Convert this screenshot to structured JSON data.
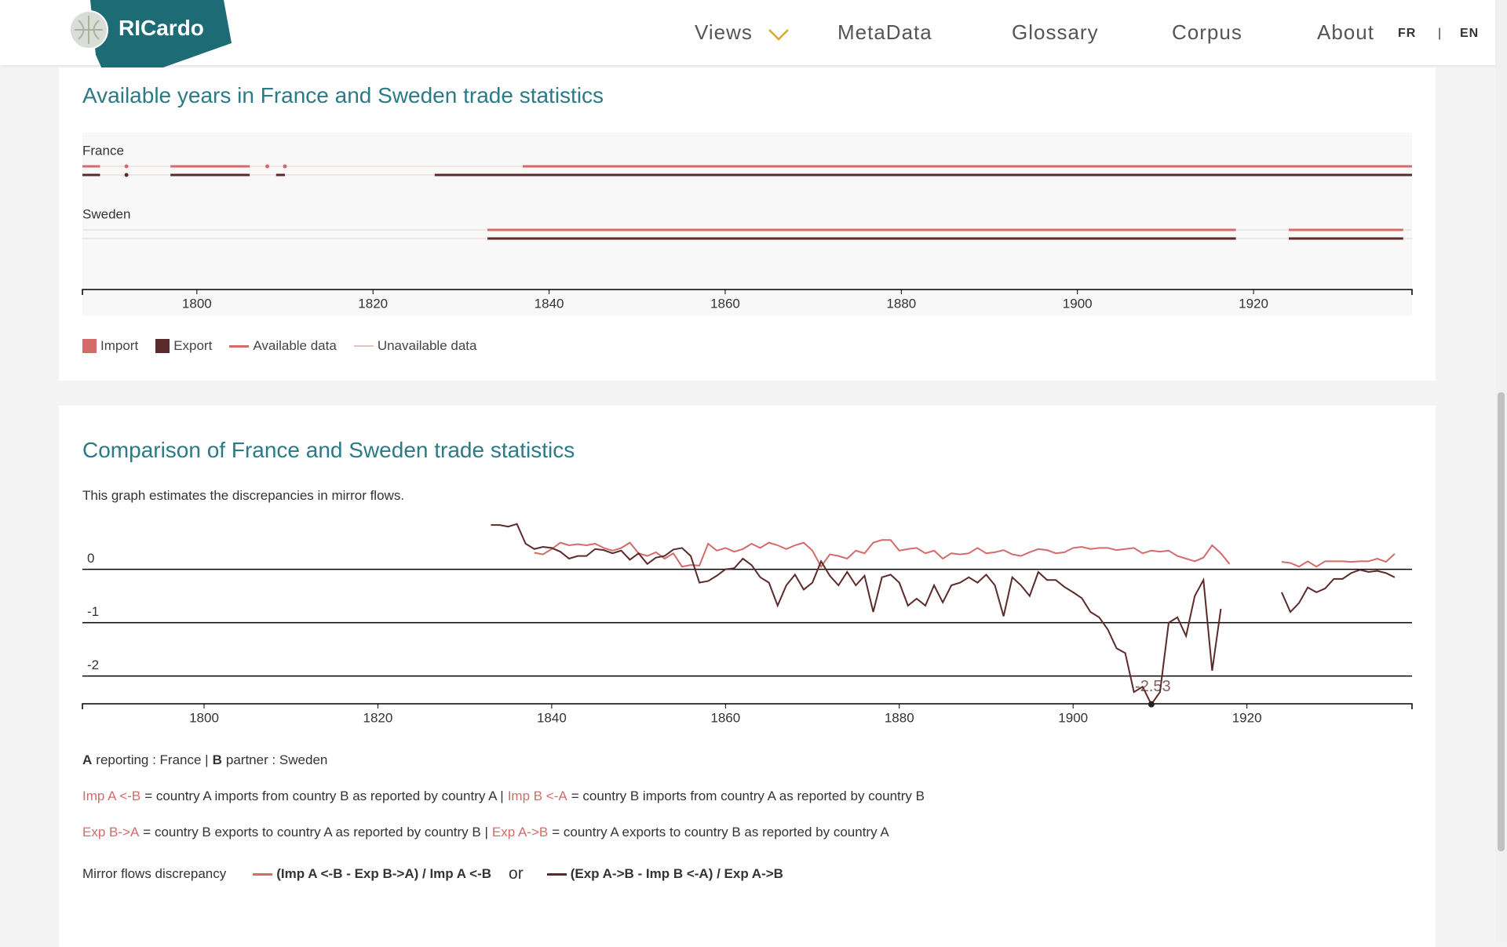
{
  "header": {
    "logo": "RICardo",
    "nav": [
      "Views",
      "MetaData",
      "Glossary",
      "Corpus",
      "About"
    ],
    "languages": [
      "FR",
      "EN"
    ],
    "language_separator": "|"
  },
  "chart_data": [
    {
      "type": "timeline",
      "title": "Available years in France and Sweden trade statistics",
      "xlim": [
        1787,
        1938
      ],
      "xticks": [
        1800,
        1820,
        1840,
        1860,
        1880,
        1900,
        1920
      ],
      "import_color": "#d36b6b",
      "export_color": "#5c2a2a",
      "unavailable_color": "#e6d2d2",
      "rows": [
        {
          "name": "France",
          "import": [
            [
              1787,
              1789
            ],
            [
              1792,
              1792
            ],
            [
              1797,
              1806
            ],
            [
              1808,
              1808
            ],
            [
              1810,
              1810
            ],
            [
              1837,
              1938
            ]
          ],
          "export": [
            [
              1787,
              1789
            ],
            [
              1792,
              1792
            ],
            [
              1797,
              1806
            ],
            [
              1809,
              1810
            ],
            [
              1827,
              1938
            ]
          ]
        },
        {
          "name": "Sweden",
          "import": [
            [
              1833,
              1918
            ],
            [
              1924,
              1937
            ]
          ],
          "export": [
            [
              1833,
              1918
            ],
            [
              1924,
              1937
            ]
          ]
        }
      ],
      "legend": {
        "import": "Import",
        "export": "Export",
        "available": "Available data",
        "unavailable": "Unavailable data"
      }
    },
    {
      "type": "line",
      "title": "Comparison of France and Sweden trade statistics",
      "subtitle": "This graph estimates the discrepancies in mirror flows.",
      "xlim": [
        1786,
        1939
      ],
      "xticks": [
        1800,
        1820,
        1840,
        1860,
        1880,
        1900,
        1920
      ],
      "ylim": [
        -2.52,
        0.95
      ],
      "yticks": [
        0,
        -1,
        -2
      ],
      "grid": true,
      "x": [
        1833,
        1834,
        1835,
        1836,
        1837,
        1838,
        1839,
        1840,
        1841,
        1842,
        1843,
        1844,
        1845,
        1846,
        1847,
        1848,
        1849,
        1850,
        1851,
        1852,
        1853,
        1854,
        1855,
        1856,
        1857,
        1858,
        1859,
        1860,
        1861,
        1862,
        1863,
        1864,
        1865,
        1866,
        1867,
        1868,
        1869,
        1870,
        1871,
        1872,
        1873,
        1874,
        1875,
        1876,
        1877,
        1878,
        1879,
        1880,
        1881,
        1882,
        1883,
        1884,
        1885,
        1886,
        1887,
        1888,
        1889,
        1890,
        1891,
        1892,
        1893,
        1894,
        1895,
        1896,
        1897,
        1898,
        1899,
        1900,
        1901,
        1902,
        1903,
        1904,
        1905,
        1906,
        1907,
        1908,
        1909,
        1910,
        1911,
        1912,
        1913,
        1914,
        1915,
        1916,
        1917,
        1918,
        1919,
        1920,
        1921,
        1922,
        1923,
        1924,
        1925,
        1926,
        1927,
        1928,
        1929,
        1930,
        1931,
        1932,
        1933,
        1934,
        1935,
        1936,
        1937
      ],
      "series": [
        {
          "name": "(Imp A <-B - Exp B->A) / Imp A <-B",
          "color": "#d36b6b",
          "values": [
            null,
            null,
            null,
            null,
            null,
            0.31,
            0.28,
            0.38,
            0.5,
            0.45,
            0.47,
            0.45,
            0.48,
            0.4,
            0.35,
            0.4,
            0.5,
            0.3,
            0.25,
            0.32,
            0.2,
            0.3,
            0.05,
            0.08,
            0.07,
            0.48,
            0.35,
            0.4,
            0.33,
            0.38,
            0.48,
            0.4,
            0.5,
            0.45,
            0.38,
            0.45,
            0.5,
            0.35,
            0.05,
            0.28,
            0.25,
            0.2,
            0.35,
            0.3,
            0.5,
            0.55,
            0.55,
            0.35,
            0.38,
            0.4,
            0.3,
            0.35,
            0.2,
            0.3,
            0.28,
            0.3,
            0.4,
            0.3,
            0.32,
            0.36,
            0.28,
            0.25,
            0.32,
            0.38,
            0.36,
            0.3,
            0.32,
            0.4,
            0.42,
            0.38,
            0.4,
            0.4,
            0.36,
            0.38,
            0.4,
            0.3,
            0.35,
            0.33,
            0.35,
            0.25,
            0.2,
            0.15,
            0.22,
            0.45,
            0.3,
            0.1,
            null,
            null,
            null,
            null,
            null,
            0.14,
            0.12,
            0.05,
            0.15,
            0.05,
            0.15,
            0.15,
            0.15,
            0.14,
            0.15,
            0.15,
            0.2,
            0.14,
            0.29
          ]
        },
        {
          "name": "(Exp A->B - Imp B <-A) / Exp A->B",
          "color": "#5c2a2a",
          "values": [
            0.83,
            0.83,
            0.8,
            0.85,
            0.48,
            0.38,
            0.42,
            0.4,
            0.33,
            0.2,
            0.25,
            0.25,
            0.38,
            0.36,
            0.3,
            0.35,
            0.18,
            0.3,
            0.1,
            0.22,
            0.25,
            0.37,
            0.4,
            0.25,
            -0.25,
            -0.22,
            -0.12,
            0.0,
            0.02,
            0.2,
            0.08,
            -0.15,
            -0.25,
            -0.68,
            -0.3,
            -0.1,
            -0.38,
            -0.25,
            0.15,
            -0.12,
            -0.3,
            -0.05,
            -0.3,
            -0.12,
            -0.8,
            -0.15,
            -0.1,
            -0.25,
            -0.68,
            -0.55,
            -0.68,
            -0.3,
            -0.62,
            -0.3,
            -0.25,
            -0.15,
            -0.25,
            -0.1,
            -0.3,
            -0.88,
            -0.15,
            -0.3,
            -0.5,
            -0.05,
            -0.2,
            -0.2,
            -0.33,
            -0.43,
            -0.54,
            -0.8,
            -0.9,
            -1.13,
            -1.48,
            -1.57,
            -2.3,
            -2.2,
            -2.53,
            -2.3,
            -1.0,
            -0.9,
            -1.25,
            -0.5,
            -0.2,
            -1.9,
            -0.74,
            null,
            null,
            null,
            null,
            null,
            null,
            -0.43,
            -0.8,
            -0.63,
            -0.34,
            -0.43,
            -0.36,
            -0.18,
            -0.18,
            -0.07,
            -0.01,
            -0.05,
            -0.03,
            -0.07,
            -0.15
          ]
        }
      ],
      "tooltip": {
        "x": 1909,
        "y": -2.53,
        "label": "-2.53"
      }
    }
  ],
  "notes": {
    "reporting": [
      "A",
      "reporting : France |",
      "B",
      "partner : Sweden"
    ],
    "imports": [
      "Imp A <-B",
      "= country A imports from country B as reported by country A |",
      "Imp B <-A",
      "= country B imports from country A as reported by country B"
    ],
    "exports": [
      "Exp B->A",
      "= country B exports to country A as reported by country B |",
      "Exp A->B",
      "= country A exports to country B as reported by country A"
    ],
    "legend_label": "Mirror flows discrepancy",
    "legend_or": "or"
  }
}
